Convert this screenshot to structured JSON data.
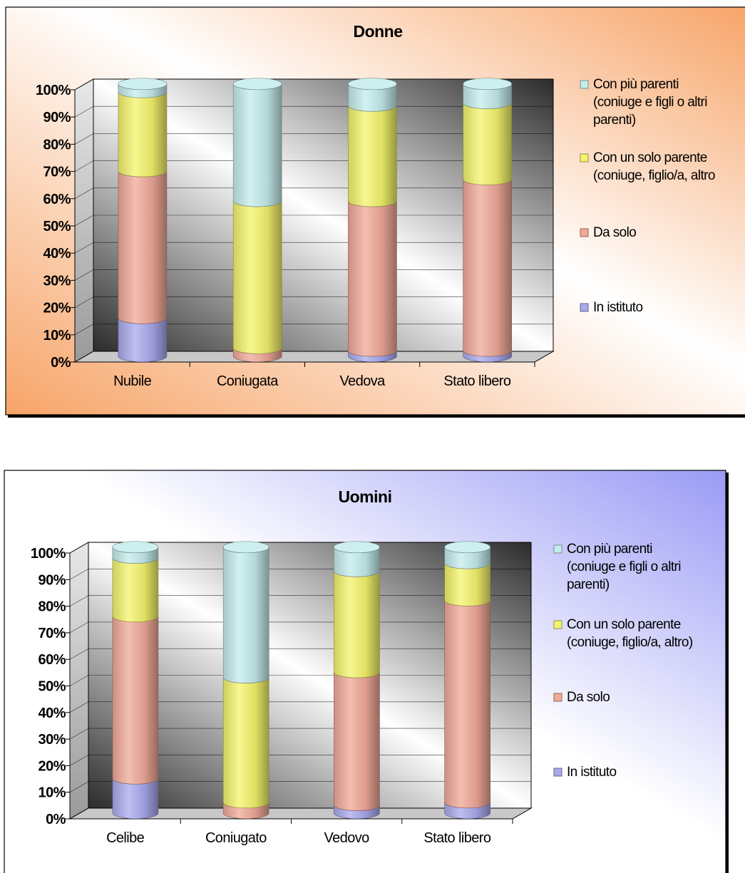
{
  "colors": {
    "in_istituto": "#a9a9ee",
    "da_solo": "#f0a898",
    "con_un_solo_parente": "#f4f46c",
    "con_piu_parenti": "#c4ecec",
    "panel_donne_start": "#f7a468",
    "panel_uomini_start": "#9a9af6"
  },
  "chart_data": [
    {
      "type": "bar",
      "stacked": true,
      "percent": true,
      "title": "Donne",
      "categories": [
        "Nubile",
        "Coniugata",
        "Vedova",
        "Stato libero"
      ],
      "yticks": [
        "0%",
        "10%",
        "20%",
        "30%",
        "40%",
        "50%",
        "60%",
        "70%",
        "80%",
        "90%",
        "100%"
      ],
      "ylim": [
        0,
        100
      ],
      "grid": true,
      "legend_position": "right",
      "series": [
        {
          "name": "In istituto",
          "color_key": "in_istituto",
          "values": [
            14,
            0,
            2,
            2
          ]
        },
        {
          "name": "Da solo",
          "color_key": "da_solo",
          "values": [
            54,
            3,
            55,
            63
          ]
        },
        {
          "name": "Con un solo parente (coniuge, figlio/a, altro",
          "color_key": "con_un_solo_parente",
          "values": [
            29,
            54,
            35,
            28
          ]
        },
        {
          "name": "Con più parenti (coniuge e figli o altri parenti)",
          "color_key": "con_piu_parenti",
          "values": [
            3,
            43,
            8,
            7
          ]
        }
      ]
    },
    {
      "type": "bar",
      "stacked": true,
      "percent": true,
      "title": "Uomini",
      "categories": [
        "Celibe",
        "Coniugato",
        "Vedovo",
        "Stato libero"
      ],
      "yticks": [
        "0%",
        "10%",
        "20%",
        "30%",
        "40%",
        "50%",
        "60%",
        "70%",
        "80%",
        "90%",
        "100%"
      ],
      "ylim": [
        0,
        100
      ],
      "grid": true,
      "legend_position": "right",
      "series": [
        {
          "name": "In istituto",
          "color_key": "in_istituto",
          "values": [
            13,
            0,
            3,
            4
          ]
        },
        {
          "name": "Da solo",
          "color_key": "da_solo",
          "values": [
            61,
            4,
            50,
            76
          ]
        },
        {
          "name": "Con un solo parente (coniuge, figlio/a, altro)",
          "color_key": "con_un_solo_parente",
          "values": [
            22,
            47,
            38,
            14
          ]
        },
        {
          "name": "Con più parenti (coniuge e figli o altri parenti)",
          "color_key": "con_piu_parenti",
          "values": [
            4,
            49,
            9,
            6
          ]
        }
      ]
    }
  ],
  "legend_donne": [
    {
      "lines": [
        "Con più parenti",
        "(coniuge e figli o altri",
        "parenti)"
      ],
      "color_key": "con_piu_parenti"
    },
    {
      "lines": [
        "Con un solo parente",
        "(coniuge, figlio/a, altro"
      ],
      "color_key": "con_un_solo_parente"
    },
    {
      "lines": [
        "Da solo"
      ],
      "color_key": "da_solo"
    },
    {
      "lines": [
        "In istituto"
      ],
      "color_key": "in_istituto"
    }
  ],
  "legend_uomini": [
    {
      "lines": [
        "Con più parenti",
        "(coniuge e figli o altri",
        "parenti)"
      ],
      "color_key": "con_piu_parenti"
    },
    {
      "lines": [
        "Con un solo parente",
        "(coniuge, figlio/a, altro)"
      ],
      "color_key": "con_un_solo_parente"
    },
    {
      "lines": [
        "Da solo"
      ],
      "color_key": "da_solo"
    },
    {
      "lines": [
        "In istituto"
      ],
      "color_key": "in_istituto"
    }
  ]
}
